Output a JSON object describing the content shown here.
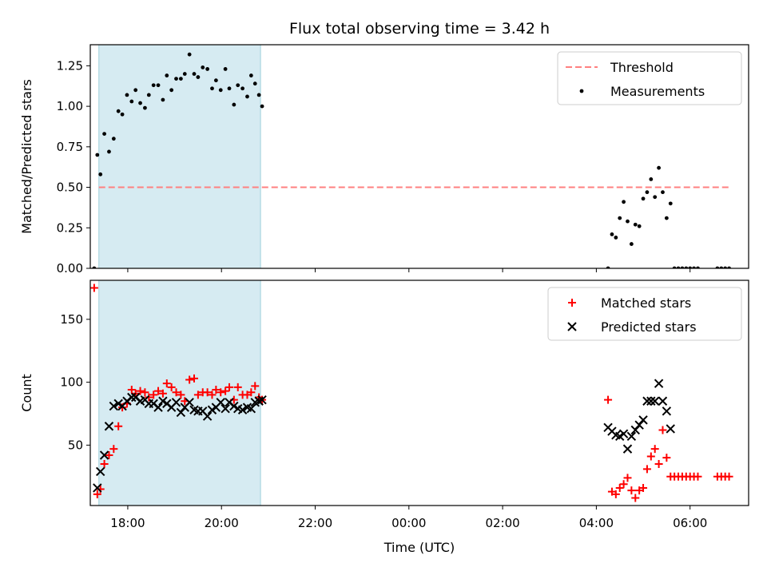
{
  "chart_data": [
    {
      "type": "scatter",
      "title": "Flux total observing time = 3.42 h",
      "xlabel": "",
      "ylabel": "Matched/Predicted stars",
      "xlim": [
        "17:12",
        "07:15"
      ],
      "ylim": [
        0,
        1.38
      ],
      "yticks": [
        "0.00",
        "0.25",
        "0.50",
        "0.75",
        "1.00",
        "1.25"
      ],
      "shaded_span": [
        "17:23",
        "20:50"
      ],
      "legend_position": "top-right",
      "legend": [
        "Threshold",
        "Measurements"
      ],
      "threshold": {
        "name": "Threshold",
        "y": 0.5,
        "x_range": [
          "17:23",
          "06:50"
        ],
        "color": "#ff8080",
        "style": "dashed"
      },
      "series": [
        {
          "name": "Measurements",
          "color": "#000000",
          "points": [
            [
              "17:17",
              0.0
            ],
            [
              "17:21",
              0.7
            ],
            [
              "17:25",
              0.58
            ],
            [
              "17:30",
              0.83
            ],
            [
              "17:36",
              0.72
            ],
            [
              "17:42",
              0.8
            ],
            [
              "17:48",
              0.97
            ],
            [
              "17:53",
              0.95
            ],
            [
              "17:59",
              1.07
            ],
            [
              "18:05",
              1.03
            ],
            [
              "18:10",
              1.1
            ],
            [
              "18:16",
              1.02
            ],
            [
              "18:22",
              0.99
            ],
            [
              "18:27",
              1.07
            ],
            [
              "18:33",
              1.13
            ],
            [
              "18:39",
              1.13
            ],
            [
              "18:45",
              1.04
            ],
            [
              "18:50",
              1.19
            ],
            [
              "18:56",
              1.1
            ],
            [
              "19:02",
              1.17
            ],
            [
              "19:08",
              1.17
            ],
            [
              "19:13",
              1.2
            ],
            [
              "19:19",
              1.32
            ],
            [
              "19:25",
              1.2
            ],
            [
              "19:30",
              1.18
            ],
            [
              "19:36",
              1.24
            ],
            [
              "19:42",
              1.23
            ],
            [
              "19:48",
              1.11
            ],
            [
              "19:53",
              1.16
            ],
            [
              "19:59",
              1.1
            ],
            [
              "20:05",
              1.23
            ],
            [
              "20:10",
              1.11
            ],
            [
              "20:16",
              1.01
            ],
            [
              "20:21",
              1.13
            ],
            [
              "20:27",
              1.11
            ],
            [
              "20:33",
              1.06
            ],
            [
              "20:38",
              1.19
            ],
            [
              "20:43",
              1.14
            ],
            [
              "20:48",
              1.07
            ],
            [
              "20:52",
              1.0
            ],
            [
              "04:15",
              0.0
            ],
            [
              "04:20",
              0.21
            ],
            [
              "04:25",
              0.19
            ],
            [
              "04:30",
              0.31
            ],
            [
              "04:35",
              0.41
            ],
            [
              "04:40",
              0.29
            ],
            [
              "04:45",
              0.15
            ],
            [
              "04:50",
              0.27
            ],
            [
              "04:55",
              0.26
            ],
            [
              "05:00",
              0.43
            ],
            [
              "05:05",
              0.47
            ],
            [
              "05:10",
              0.55
            ],
            [
              "05:15",
              0.44
            ],
            [
              "05:20",
              0.62
            ],
            [
              "05:25",
              0.47
            ],
            [
              "05:30",
              0.31
            ],
            [
              "05:35",
              0.4
            ],
            [
              "05:40",
              0.0
            ],
            [
              "05:45",
              0.0
            ],
            [
              "05:50",
              0.0
            ],
            [
              "05:55",
              0.0
            ],
            [
              "06:00",
              0.0
            ],
            [
              "06:05",
              0.0
            ],
            [
              "06:10",
              0.0
            ],
            [
              "06:35",
              0.0
            ],
            [
              "06:40",
              0.0
            ],
            [
              "06:45",
              0.0
            ],
            [
              "06:50",
              0.0
            ]
          ]
        }
      ]
    },
    {
      "type": "scatter",
      "title": "",
      "xlabel": "Time (UTC)",
      "ylabel": "Count",
      "xlim": [
        "17:12",
        "07:15"
      ],
      "ylim": [
        2,
        181
      ],
      "yticks": [
        "50",
        "100",
        "150"
      ],
      "xticks": [
        "18:00",
        "20:00",
        "22:00",
        "00:00",
        "02:00",
        "04:00",
        "06:00"
      ],
      "shaded_span": [
        "17:23",
        "20:50"
      ],
      "legend_position": "top-right",
      "legend": [
        "Matched stars",
        "Predicted stars"
      ],
      "series": [
        {
          "name": "Matched stars",
          "marker": "+",
          "color": "#ff0000",
          "points": [
            [
              "17:17",
              175
            ],
            [
              "17:21",
              11
            ],
            [
              "17:25",
              15
            ],
            [
              "17:30",
              35
            ],
            [
              "17:36",
              42
            ],
            [
              "17:42",
              47
            ],
            [
              "17:48",
              65
            ],
            [
              "17:53",
              80
            ],
            [
              "17:59",
              83
            ],
            [
              "18:05",
              94
            ],
            [
              "18:10",
              91
            ],
            [
              "18:16",
              93
            ],
            [
              "18:22",
              92
            ],
            [
              "18:27",
              88
            ],
            [
              "18:33",
              90
            ],
            [
              "18:39",
              93
            ],
            [
              "18:45",
              91
            ],
            [
              "18:50",
              99
            ],
            [
              "18:56",
              96
            ],
            [
              "19:02",
              92
            ],
            [
              "19:08",
              90
            ],
            [
              "19:13",
              85
            ],
            [
              "19:19",
              102
            ],
            [
              "19:25",
              103
            ],
            [
              "19:30",
              90
            ],
            [
              "19:36",
              92
            ],
            [
              "19:42",
              92
            ],
            [
              "19:48",
              90
            ],
            [
              "19:53",
              94
            ],
            [
              "19:59",
              92
            ],
            [
              "20:05",
              93
            ],
            [
              "20:10",
              96
            ],
            [
              "20:16",
              86
            ],
            [
              "20:21",
              96
            ],
            [
              "20:27",
              90
            ],
            [
              "20:33",
              90
            ],
            [
              "20:38",
              92
            ],
            [
              "20:43",
              97
            ],
            [
              "20:48",
              88
            ],
            [
              "20:52",
              86
            ],
            [
              "04:15",
              86
            ],
            [
              "04:20",
              13
            ],
            [
              "04:25",
              11
            ],
            [
              "04:30",
              16
            ],
            [
              "04:35",
              19
            ],
            [
              "04:40",
              24
            ],
            [
              "04:45",
              14
            ],
            [
              "04:50",
              8
            ],
            [
              "04:55",
              14
            ],
            [
              "05:00",
              16
            ],
            [
              "05:05",
              31
            ],
            [
              "05:10",
              41
            ],
            [
              "05:15",
              47
            ],
            [
              "05:20",
              35
            ],
            [
              "05:25",
              62
            ],
            [
              "05:30",
              40
            ],
            [
              "05:35",
              25
            ],
            [
              "05:40",
              25
            ],
            [
              "05:45",
              25
            ],
            [
              "05:50",
              25
            ],
            [
              "05:55",
              25
            ],
            [
              "06:00",
              25
            ],
            [
              "06:05",
              25
            ],
            [
              "06:10",
              25
            ],
            [
              "06:35",
              25
            ],
            [
              "06:40",
              25
            ],
            [
              "06:45",
              25
            ],
            [
              "06:50",
              25
            ]
          ]
        },
        {
          "name": "Predicted stars",
          "marker": "x",
          "color": "#000000",
          "points": [
            [
              "17:21",
              16
            ],
            [
              "17:25",
              29
            ],
            [
              "17:30",
              42
            ],
            [
              "17:36",
              65
            ],
            [
              "17:42",
              81
            ],
            [
              "17:48",
              83
            ],
            [
              "17:53",
              81
            ],
            [
              "17:59",
              85
            ],
            [
              "18:05",
              88
            ],
            [
              "18:10",
              88
            ],
            [
              "18:16",
              85
            ],
            [
              "18:22",
              86
            ],
            [
              "18:27",
              83
            ],
            [
              "18:33",
              83
            ],
            [
              "18:39",
              80
            ],
            [
              "18:45",
              85
            ],
            [
              "18:50",
              83
            ],
            [
              "18:56",
              80
            ],
            [
              "19:02",
              84
            ],
            [
              "19:08",
              76
            ],
            [
              "19:13",
              80
            ],
            [
              "19:19",
              84
            ],
            [
              "19:25",
              78
            ],
            [
              "19:30",
              77
            ],
            [
              "19:36",
              77
            ],
            [
              "19:42",
              73
            ],
            [
              "19:48",
              78
            ],
            [
              "19:53",
              80
            ],
            [
              "19:59",
              84
            ],
            [
              "20:05",
              79
            ],
            [
              "20:10",
              84
            ],
            [
              "20:16",
              81
            ],
            [
              "20:21",
              79
            ],
            [
              "20:27",
              78
            ],
            [
              "20:33",
              80
            ],
            [
              "20:38",
              79
            ],
            [
              "20:43",
              84
            ],
            [
              "20:48",
              85
            ],
            [
              "20:52",
              86
            ],
            [
              "04:15",
              64
            ],
            [
              "04:20",
              61
            ],
            [
              "04:25",
              58
            ],
            [
              "04:30",
              57
            ],
            [
              "04:35",
              59
            ],
            [
              "04:40",
              47
            ],
            [
              "04:45",
              57
            ],
            [
              "04:50",
              62
            ],
            [
              "04:55",
              66
            ],
            [
              "05:00",
              70
            ],
            [
              "05:05",
              85
            ],
            [
              "05:10",
              85
            ],
            [
              "05:15",
              85
            ],
            [
              "05:20",
              99
            ],
            [
              "05:25",
              85
            ],
            [
              "05:30",
              77
            ],
            [
              "05:35",
              63
            ]
          ]
        }
      ]
    }
  ]
}
